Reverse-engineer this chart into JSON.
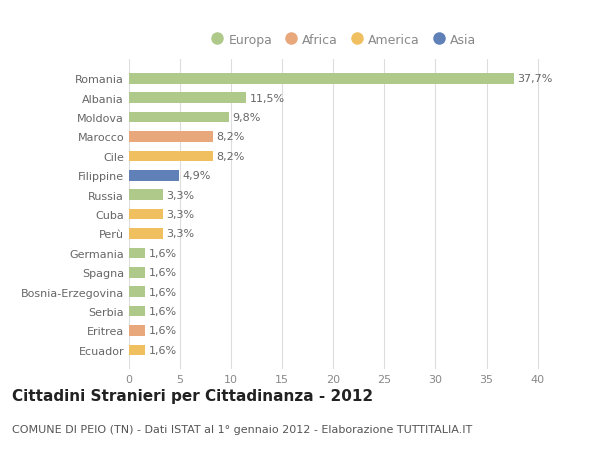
{
  "categories": [
    "Romania",
    "Albania",
    "Moldova",
    "Marocco",
    "Cile",
    "Filippine",
    "Russia",
    "Cuba",
    "Perù",
    "Germania",
    "Spagna",
    "Bosnia-Erzegovina",
    "Serbia",
    "Eritrea",
    "Ecuador"
  ],
  "values": [
    37.7,
    11.5,
    9.8,
    8.2,
    8.2,
    4.9,
    3.3,
    3.3,
    3.3,
    1.6,
    1.6,
    1.6,
    1.6,
    1.6,
    1.6
  ],
  "labels": [
    "37,7%",
    "11,5%",
    "9,8%",
    "8,2%",
    "8,2%",
    "4,9%",
    "3,3%",
    "3,3%",
    "3,3%",
    "1,6%",
    "1,6%",
    "1,6%",
    "1,6%",
    "1,6%",
    "1,6%"
  ],
  "continents": [
    "Europa",
    "Europa",
    "Europa",
    "Africa",
    "America",
    "Asia",
    "Europa",
    "America",
    "America",
    "Europa",
    "Europa",
    "Europa",
    "Europa",
    "Africa",
    "America"
  ],
  "continent_colors": {
    "Europa": "#aec98a",
    "Africa": "#e8a87c",
    "America": "#f0c060",
    "Asia": "#6080b8"
  },
  "legend_order": [
    "Europa",
    "Africa",
    "America",
    "Asia"
  ],
  "title": "Cittadini Stranieri per Cittadinanza - 2012",
  "subtitle": "COMUNE DI PEIO (TN) - Dati ISTAT al 1° gennaio 2012 - Elaborazione TUTTITALIA.IT",
  "xlim": [
    0,
    42
  ],
  "xticks": [
    0,
    5,
    10,
    15,
    20,
    25,
    30,
    35,
    40
  ],
  "background_color": "#ffffff",
  "grid_color": "#dddddd",
  "label_fontsize": 8,
  "ytick_fontsize": 8,
  "xtick_fontsize": 8,
  "title_fontsize": 11,
  "subtitle_fontsize": 8,
  "legend_fontsize": 9
}
